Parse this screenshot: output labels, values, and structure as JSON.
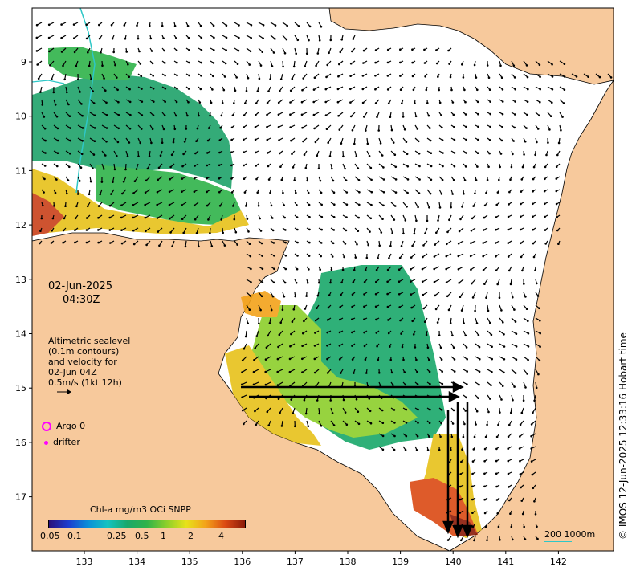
{
  "map": {
    "lon_ticks": [
      "133",
      "134",
      "135",
      "136",
      "137",
      "138",
      "139",
      "140",
      "141",
      "142"
    ],
    "lat_ticks": [
      "9",
      "10",
      "11",
      "12",
      "13",
      "14",
      "15",
      "16",
      "17"
    ],
    "colors": {
      "land": "#f7c99c",
      "sea": "#ffffff",
      "arrow": "#000000",
      "argo": "#ff00ff",
      "scale": "#2ec7c7"
    }
  },
  "date": {
    "date": "02-Jun-2025",
    "time": "04:30Z"
  },
  "altimetry": {
    "line1": "Altimetric sealevel",
    "line2": "(0.1m contours)",
    "line3": "and velocity for",
    "line4": "02-Jun 04Z",
    "line5": "0.5m/s (1kt 12h)"
  },
  "legend": {
    "argo": "Argo 0",
    "drifter": "drifter"
  },
  "colorbar": {
    "title": "Chl-a mg/m3 OCi SNPP",
    "ticks": [
      "0.05",
      "0.1",
      "0.25",
      "0.5",
      "1",
      "2",
      "4"
    ]
  },
  "scale": {
    "label": "200  1000m"
  },
  "credit": "© IMOS 12-Jun-2025 12:33:16 Hobart time"
}
